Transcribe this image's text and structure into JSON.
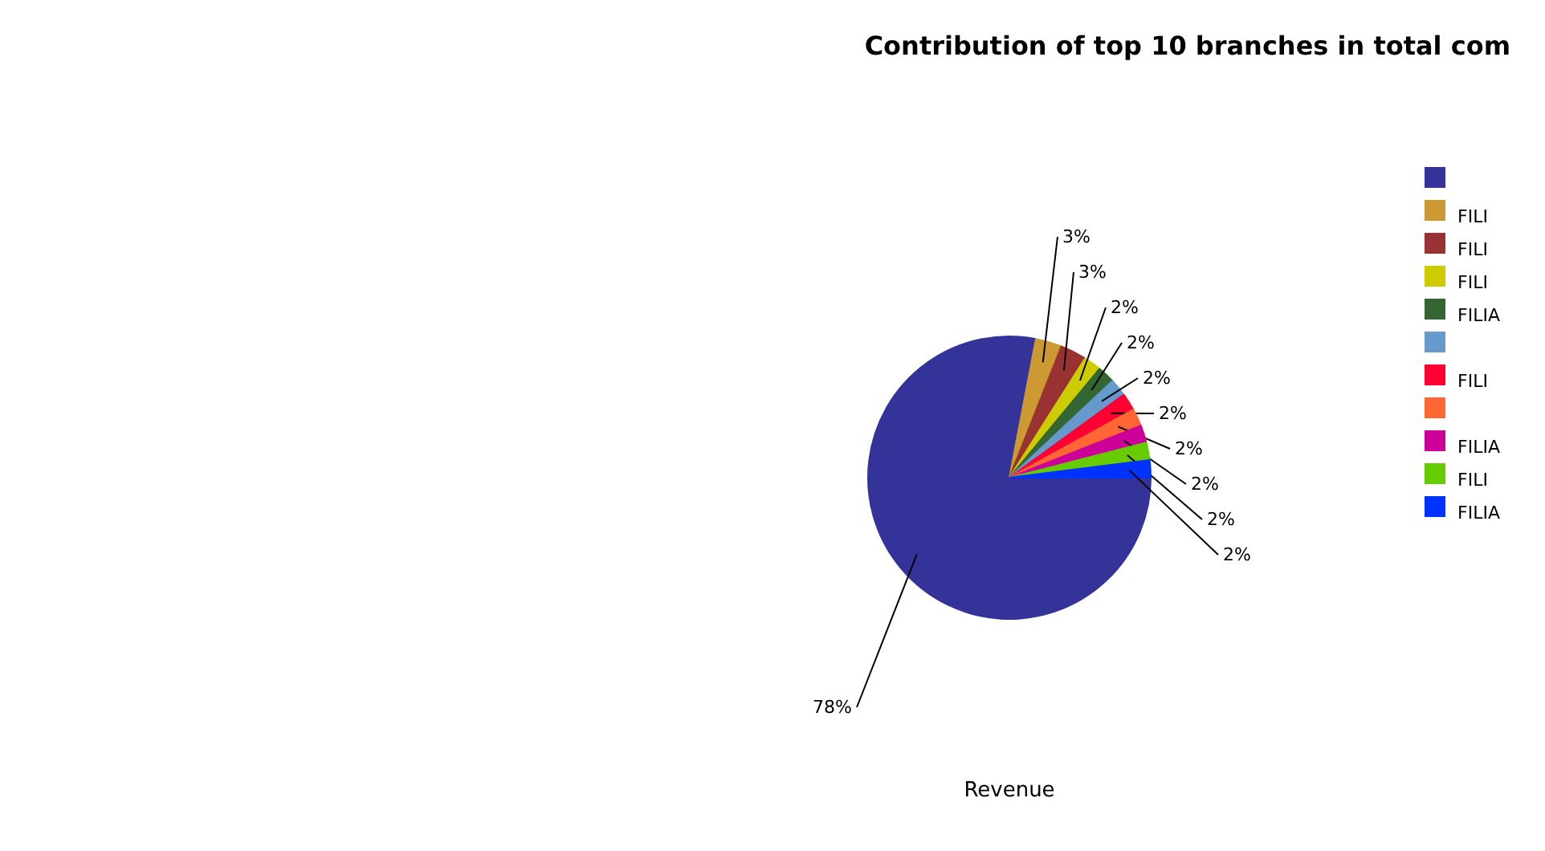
{
  "chart_data": {
    "type": "pie",
    "title": "Contribution of top 10 branches in total com",
    "xlabel": "Revenue",
    "categories": [
      null,
      "FILI",
      "FILI",
      "FILI",
      "FILIA",
      null,
      "FILI",
      null,
      "FILIA",
      "FILI",
      "FILIA"
    ],
    "values": [
      78,
      3,
      3,
      2,
      2,
      2,
      2,
      2,
      2,
      2,
      2
    ],
    "value_labels": [
      "78%",
      "3%",
      "3%",
      "2%",
      "2%",
      "2%",
      "2%",
      "2%",
      "2%",
      "2%",
      "2%"
    ],
    "colors": [
      "#333399",
      "#cc9933",
      "#993333",
      "#cccc00",
      "#336633",
      "#6699cc",
      "#ff0033",
      "#ff6633",
      "#cc0099",
      "#66cc00",
      "#0033ff"
    ],
    "legend": "right"
  }
}
